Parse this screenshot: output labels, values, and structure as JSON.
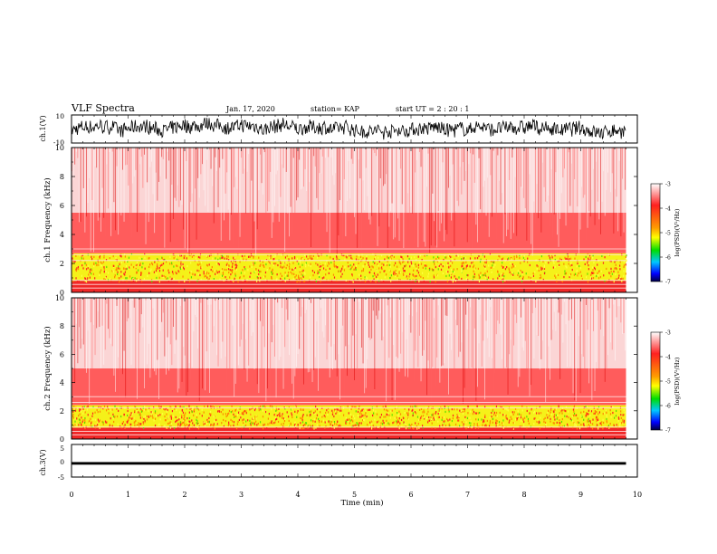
{
  "header": {
    "title": "VLF Spectra",
    "date": "Jan. 17, 2020",
    "station": "station= KAP",
    "start": "start UT =  2 : 20 : 1"
  },
  "colorbar": {
    "label": "log(PSD)(V²/Hz)",
    "ticks": [
      "-3",
      "-4",
      "-5",
      "-6",
      "-7"
    ],
    "range": [
      -7,
      -3
    ]
  },
  "chart_data": [
    {
      "type": "line",
      "panel": "ch.1 waveform",
      "ylabel": "ch.1(V)",
      "ylim": [
        -10,
        10
      ],
      "yticks": [
        "10",
        "-10"
      ],
      "xlim": [
        0,
        10
      ],
      "x_extent_min": 9.8,
      "description_values": {
        "amplitude_range": [
          -8,
          8
        ]
      }
    },
    {
      "type": "heatmap",
      "panel": "ch.1 spectrogram",
      "ylabel": "ch.1 Frequency (kHz)",
      "ylim": [
        0,
        10
      ],
      "yticks": [
        "0",
        "2",
        "4",
        "6",
        "8",
        "10"
      ],
      "xlim": [
        0,
        10
      ],
      "x_extent_min": 9.8,
      "bands": [
        {
          "freq_khz": [
            0,
            0.8
          ],
          "log_psd": -4.0
        },
        {
          "freq_khz": [
            0.8,
            2.7
          ],
          "log_psd": -4.8
        },
        {
          "freq_khz": [
            2.7,
            5.5
          ],
          "log_psd": -3.6
        },
        {
          "freq_khz": [
            5.5,
            10
          ],
          "log_psd": -3.2
        }
      ]
    },
    {
      "type": "heatmap",
      "panel": "ch.2 spectrogram",
      "ylabel": "ch.2 Frequency (kHz)",
      "ylim": [
        0,
        10
      ],
      "yticks": [
        "0",
        "2",
        "4",
        "6",
        "8",
        "10"
      ],
      "xlim": [
        0,
        10
      ],
      "x_extent_min": 9.8,
      "bands": [
        {
          "freq_khz": [
            0,
            0.8
          ],
          "log_psd": -4.0
        },
        {
          "freq_khz": [
            0.8,
            2.4
          ],
          "log_psd": -5.0
        },
        {
          "freq_khz": [
            2.4,
            5.0
          ],
          "log_psd": -3.6
        },
        {
          "freq_khz": [
            5.0,
            10
          ],
          "log_psd": -3.1
        }
      ]
    },
    {
      "type": "line",
      "panel": "ch.3 waveform",
      "ylabel": "ch.3(V)",
      "ylim": [
        -5,
        5
      ],
      "yticks": [
        "5",
        "0",
        "-5"
      ],
      "xlim": [
        0,
        10
      ],
      "x_extent_min": 9.8,
      "description_values": {
        "amplitude_range": [
          -1.2,
          -0.4
        ]
      }
    }
  ],
  "xaxis": {
    "label": "Time (min)",
    "ticks": [
      "0",
      "1",
      "2",
      "3",
      "4",
      "5",
      "6",
      "7",
      "8",
      "9",
      "10"
    ]
  }
}
